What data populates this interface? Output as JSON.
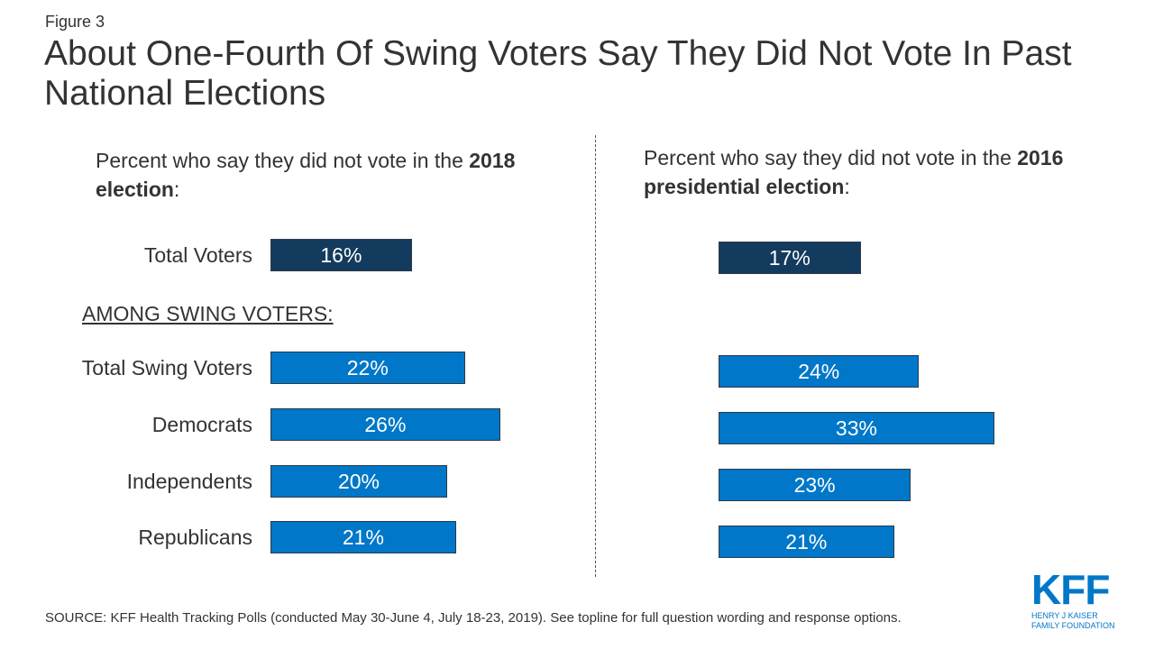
{
  "figure_label": "Figure 3",
  "title": "About One-Fourth Of Swing Voters Say They Did Not Vote In Past National Elections",
  "source": "SOURCE: KFF Health Tracking Polls (conducted May 30-June 4, July 18-23, 2019). See topline for full question wording and response options.",
  "logo": {
    "mark": "KFF",
    "line1": "HENRY J KAISER",
    "line2": "FAMILY FOUNDATION",
    "color": "#0077c8"
  },
  "colors": {
    "total": "#133b5e",
    "swing": "#0077c8"
  },
  "among_label": "AMONG SWING VOTERS:",
  "chart_data": [
    {
      "type": "bar",
      "orientation": "horizontal",
      "subtitle_pre": "Percent who say they did not vote in the ",
      "subtitle_bold": "2018 election",
      "subtitle_post": ":",
      "categories": [
        "Total Voters",
        "Total Swing Voters",
        "Democrats",
        "Independents",
        "Republicans"
      ],
      "values": [
        16,
        22,
        26,
        20,
        21
      ],
      "labels": [
        "16%",
        "22%",
        "26%",
        "20%",
        "21%"
      ]
    },
    {
      "type": "bar",
      "orientation": "horizontal",
      "subtitle_pre": "Percent who say they did not vote in the ",
      "subtitle_bold": "2016 presidential election",
      "subtitle_post": ":",
      "categories": [
        "Total Voters",
        "Total Swing Voters",
        "Democrats",
        "Independents",
        "Republicans"
      ],
      "values": [
        17,
        24,
        33,
        23,
        21
      ],
      "labels": [
        "17%",
        "24%",
        "33%",
        "23%",
        "21%"
      ]
    }
  ]
}
